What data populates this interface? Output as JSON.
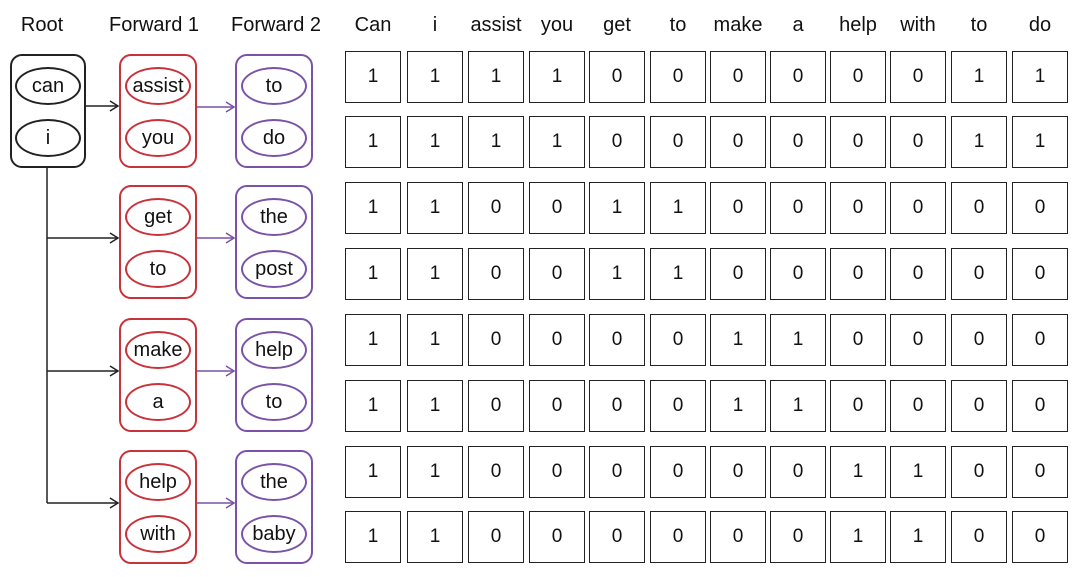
{
  "headers": {
    "root": "Root",
    "forward1": "Forward 1",
    "forward2": "Forward 2"
  },
  "colors": {
    "root": "#222222",
    "forward1": "#c8323a",
    "forward2": "#7a52a8"
  },
  "root": [
    "can",
    "i"
  ],
  "groups": [
    {
      "forward1": [
        "assist",
        "you"
      ],
      "forward2": [
        "to",
        "do"
      ]
    },
    {
      "forward1": [
        "get",
        "to"
      ],
      "forward2": [
        "the",
        "post"
      ]
    },
    {
      "forward1": [
        "make",
        "a"
      ],
      "forward2": [
        "help",
        "to"
      ]
    },
    {
      "forward1": [
        "help",
        "with"
      ],
      "forward2": [
        "the",
        "baby"
      ]
    }
  ],
  "matrix": {
    "columns": [
      "Can",
      "i",
      "assist",
      "you",
      "get",
      "to",
      "make",
      "a",
      "help",
      "with",
      "to",
      "do"
    ],
    "rows": [
      [
        1,
        1,
        1,
        1,
        0,
        0,
        0,
        0,
        0,
        0,
        1,
        1
      ],
      [
        1,
        1,
        1,
        1,
        0,
        0,
        0,
        0,
        0,
        0,
        1,
        1
      ],
      [
        1,
        1,
        0,
        0,
        1,
        1,
        0,
        0,
        0,
        0,
        0,
        0
      ],
      [
        1,
        1,
        0,
        0,
        1,
        1,
        0,
        0,
        0,
        0,
        0,
        0
      ],
      [
        1,
        1,
        0,
        0,
        0,
        0,
        1,
        1,
        0,
        0,
        0,
        0
      ],
      [
        1,
        1,
        0,
        0,
        0,
        0,
        1,
        1,
        0,
        0,
        0,
        0
      ],
      [
        1,
        1,
        0,
        0,
        0,
        0,
        0,
        0,
        1,
        1,
        0,
        0
      ],
      [
        1,
        1,
        0,
        0,
        0,
        0,
        0,
        0,
        1,
        1,
        0,
        0
      ]
    ]
  }
}
